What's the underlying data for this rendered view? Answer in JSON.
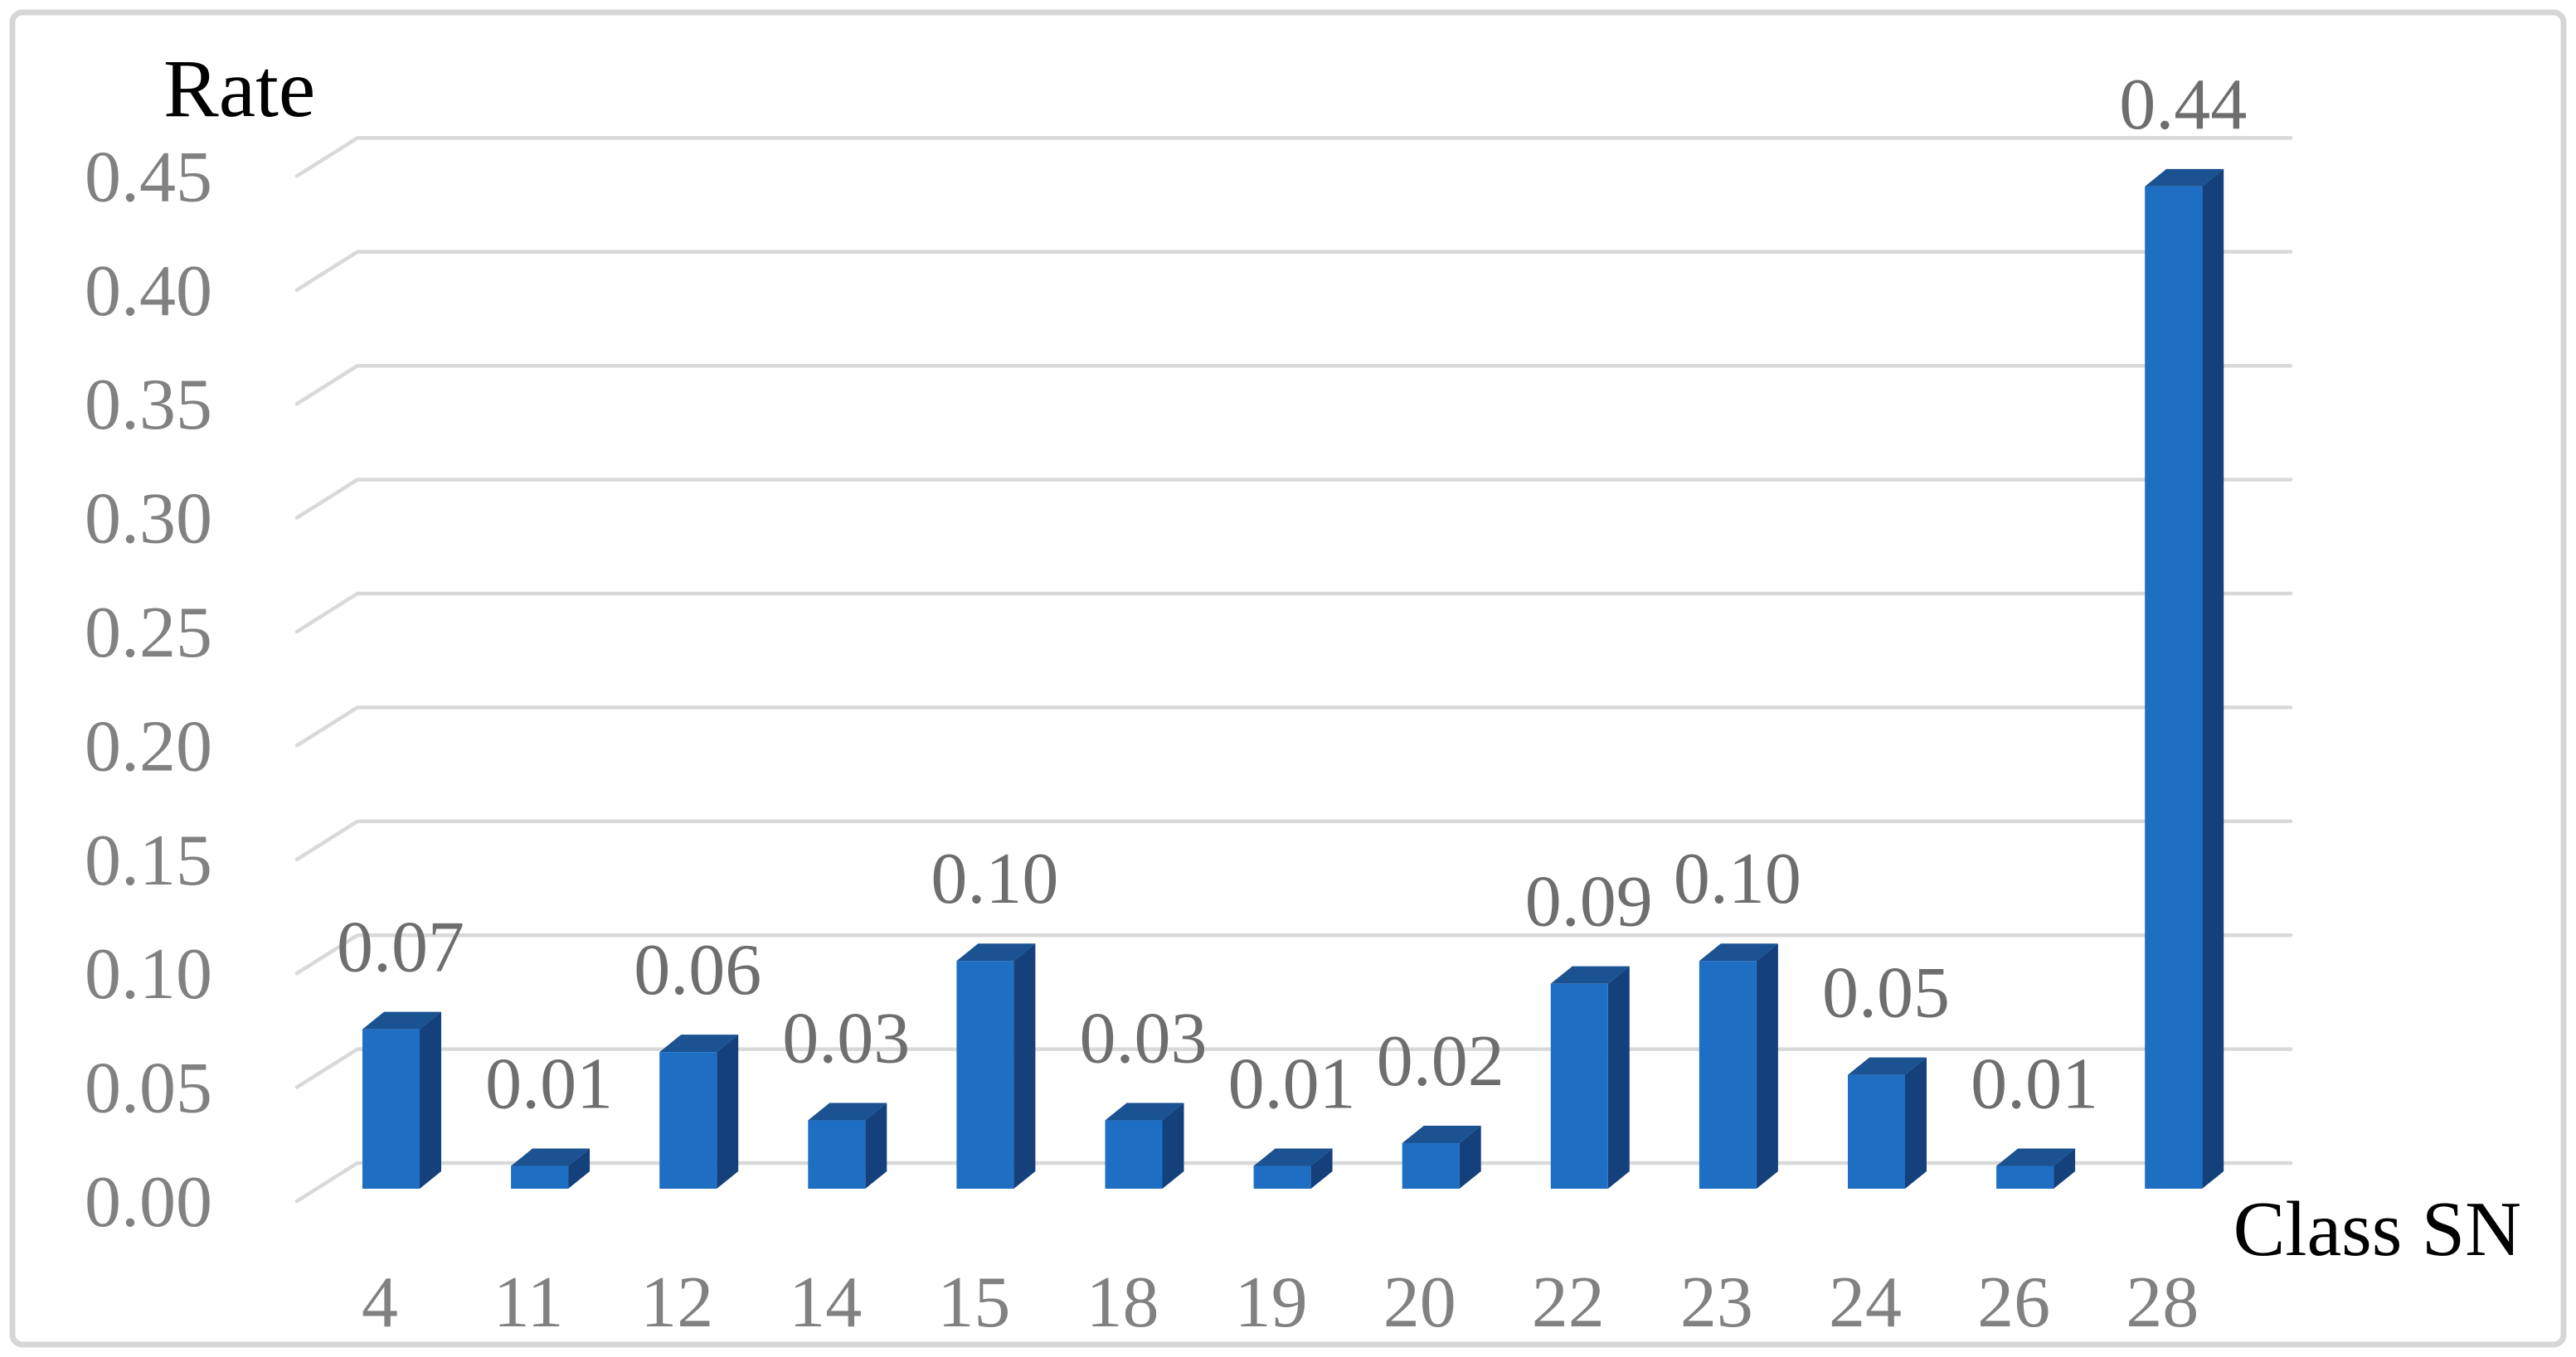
{
  "chart_data": {
    "type": "bar",
    "style": "3d-column",
    "title": "Rate",
    "xlabel": "Class SN",
    "categories": [
      "4",
      "11",
      "12",
      "14",
      "15",
      "18",
      "19",
      "20",
      "22",
      "23",
      "24",
      "26",
      "28"
    ],
    "values": [
      0.07,
      0.01,
      0.06,
      0.03,
      0.1,
      0.03,
      0.01,
      0.02,
      0.09,
      0.1,
      0.05,
      0.01,
      0.44
    ],
    "data_labels": [
      "0.07",
      "0.01",
      "0.06",
      "0.03",
      "0.10",
      "0.03",
      "0.01",
      "0.02",
      "0.09",
      "0.10",
      "0.05",
      "0.01",
      "0.44"
    ],
    "y_axis": {
      "min": 0,
      "max": 0.45,
      "step": 0.05,
      "tick_labels": [
        "0.00",
        "0.05",
        "0.10",
        "0.15",
        "0.20",
        "0.25",
        "0.30",
        "0.35",
        "0.40",
        "0.45"
      ],
      "tick_values": [
        0.0,
        0.05,
        0.1,
        0.15,
        0.2,
        0.25,
        0.3,
        0.35,
        0.4,
        0.45
      ]
    },
    "grid": true,
    "legend": "none",
    "colors": {
      "bar_front": "#1E6FC3",
      "bar_top": "#1A5292",
      "bar_side": "#14417C",
      "gridline": "#D9D9D9",
      "tick_text": "#818181",
      "category_text": "#818181",
      "value_label_text": "#6E6E6E",
      "title_text": "#000000",
      "xlabel_text": "#000000",
      "border": "#D6D6D6",
      "background": "#FFFFFF"
    }
  }
}
